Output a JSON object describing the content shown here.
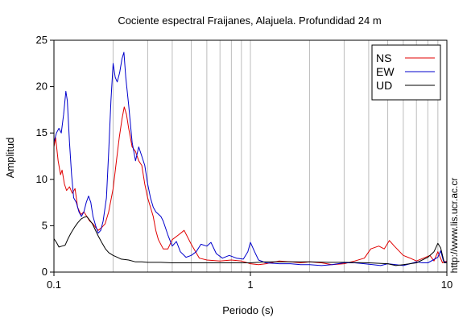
{
  "chart_data": {
    "type": "line",
    "title": "Cociente espectral Fraijanes, Alajuela. Profundidad 24 m",
    "xlabel": "Periodo (s)",
    "ylabel": "Amplitud",
    "xscale": "log",
    "xlim": [
      0.1,
      10
    ],
    "ylim": [
      0,
      25
    ],
    "xticks": [
      {
        "v": 0.1,
        "label": "0.1"
      },
      {
        "v": 1,
        "label": "1"
      },
      {
        "v": 10,
        "label": "10"
      }
    ],
    "yticks": [
      {
        "v": 0,
        "label": "0"
      },
      {
        "v": 5,
        "label": "5"
      },
      {
        "v": 10,
        "label": "10"
      },
      {
        "v": 15,
        "label": "15"
      },
      {
        "v": 20,
        "label": "20"
      },
      {
        "v": 25,
        "label": "25"
      }
    ],
    "grid": "vertical-log",
    "legend_position": "top-right",
    "side_text": "http://www.lis.ucr.ac.cr",
    "series": [
      {
        "name": "NS",
        "color": "#e00000",
        "points": [
          [
            0.1,
            13.5
          ],
          [
            0.102,
            14.5
          ],
          [
            0.105,
            12
          ],
          [
            0.108,
            10.5
          ],
          [
            0.11,
            11
          ],
          [
            0.113,
            9.5
          ],
          [
            0.116,
            8.8
          ],
          [
            0.12,
            9.2
          ],
          [
            0.124,
            8.5
          ],
          [
            0.128,
            9
          ],
          [
            0.132,
            7
          ],
          [
            0.137,
            6.2
          ],
          [
            0.142,
            6.5
          ],
          [
            0.147,
            6
          ],
          [
            0.152,
            5.5
          ],
          [
            0.158,
            5.2
          ],
          [
            0.163,
            4.8
          ],
          [
            0.168,
            4.5
          ],
          [
            0.175,
            4.8
          ],
          [
            0.182,
            5.2
          ],
          [
            0.19,
            6.5
          ],
          [
            0.2,
            9
          ],
          [
            0.208,
            12
          ],
          [
            0.215,
            14.5
          ],
          [
            0.222,
            16.5
          ],
          [
            0.228,
            17.8
          ],
          [
            0.234,
            17
          ],
          [
            0.24,
            15.5
          ],
          [
            0.25,
            13.5
          ],
          [
            0.26,
            13
          ],
          [
            0.27,
            12
          ],
          [
            0.28,
            11.5
          ],
          [
            0.29,
            9.5
          ],
          [
            0.3,
            8
          ],
          [
            0.31,
            7
          ],
          [
            0.32,
            6
          ],
          [
            0.33,
            4.5
          ],
          [
            0.34,
            3.5
          ],
          [
            0.36,
            2.5
          ],
          [
            0.38,
            2.5
          ],
          [
            0.4,
            3.5
          ],
          [
            0.43,
            4
          ],
          [
            0.46,
            4.5
          ],
          [
            0.5,
            3
          ],
          [
            0.55,
            1.5
          ],
          [
            0.6,
            1.3
          ],
          [
            0.7,
            1.2
          ],
          [
            0.8,
            1.3
          ],
          [
            0.9,
            1.2
          ],
          [
            1,
            0.9
          ],
          [
            1.1,
            0.8
          ],
          [
            1.2,
            0.9
          ],
          [
            1.4,
            1.2
          ],
          [
            1.6,
            1.1
          ],
          [
            1.8,
            1
          ],
          [
            2,
            1.1
          ],
          [
            2.3,
            1
          ],
          [
            2.6,
            0.8
          ],
          [
            3,
            0.9
          ],
          [
            3.4,
            1.2
          ],
          [
            3.8,
            1.5
          ],
          [
            4.1,
            2.5
          ],
          [
            4.5,
            2.8
          ],
          [
            4.8,
            2.5
          ],
          [
            5.1,
            3.4
          ],
          [
            5.4,
            2.8
          ],
          [
            6,
            1.8
          ],
          [
            6.5,
            1.5
          ],
          [
            7,
            1.2
          ],
          [
            7.6,
            1.5
          ],
          [
            8.2,
            1.8
          ],
          [
            8.6,
            1.2
          ],
          [
            9,
            2.2
          ],
          [
            9.5,
            1
          ],
          [
            10,
            1.2
          ]
        ]
      },
      {
        "name": "EW",
        "color": "#0000cc",
        "points": [
          [
            0.1,
            14
          ],
          [
            0.103,
            15
          ],
          [
            0.106,
            15.5
          ],
          [
            0.109,
            15
          ],
          [
            0.112,
            17
          ],
          [
            0.115,
            19.5
          ],
          [
            0.117,
            18.5
          ],
          [
            0.12,
            14
          ],
          [
            0.123,
            10.5
          ],
          [
            0.126,
            8
          ],
          [
            0.13,
            7.5
          ],
          [
            0.134,
            6.5
          ],
          [
            0.138,
            6
          ],
          [
            0.142,
            6.5
          ],
          [
            0.146,
            7.5
          ],
          [
            0.15,
            8.2
          ],
          [
            0.154,
            7.5
          ],
          [
            0.158,
            6
          ],
          [
            0.163,
            5
          ],
          [
            0.168,
            4.2
          ],
          [
            0.173,
            4.5
          ],
          [
            0.178,
            5.5
          ],
          [
            0.185,
            8
          ],
          [
            0.19,
            13
          ],
          [
            0.195,
            18.5
          ],
          [
            0.2,
            22.5
          ],
          [
            0.205,
            21
          ],
          [
            0.21,
            20.5
          ],
          [
            0.216,
            21.5
          ],
          [
            0.222,
            23
          ],
          [
            0.227,
            23.7
          ],
          [
            0.232,
            21
          ],
          [
            0.24,
            18
          ],
          [
            0.25,
            14
          ],
          [
            0.26,
            12
          ],
          [
            0.27,
            13.5
          ],
          [
            0.28,
            12.5
          ],
          [
            0.29,
            11.5
          ],
          [
            0.3,
            9.5
          ],
          [
            0.31,
            8
          ],
          [
            0.32,
            7
          ],
          [
            0.33,
            6.5
          ],
          [
            0.35,
            6
          ],
          [
            0.36,
            5.5
          ],
          [
            0.38,
            4
          ],
          [
            0.4,
            2.8
          ],
          [
            0.42,
            3.3
          ],
          [
            0.44,
            2.2
          ],
          [
            0.47,
            1.6
          ],
          [
            0.5,
            1.8
          ],
          [
            0.53,
            2.2
          ],
          [
            0.56,
            3
          ],
          [
            0.6,
            2.8
          ],
          [
            0.63,
            3.2
          ],
          [
            0.67,
            2
          ],
          [
            0.72,
            1.5
          ],
          [
            0.78,
            1.8
          ],
          [
            0.85,
            1.5
          ],
          [
            0.92,
            1.4
          ],
          [
            0.97,
            2.2
          ],
          [
            1.0,
            3.2
          ],
          [
            1.05,
            2.2
          ],
          [
            1.1,
            1.3
          ],
          [
            1.2,
            1
          ],
          [
            1.4,
            0.9
          ],
          [
            1.6,
            0.9
          ],
          [
            1.8,
            0.8
          ],
          [
            2,
            0.8
          ],
          [
            2.3,
            0.7
          ],
          [
            2.6,
            0.8
          ],
          [
            3,
            1
          ],
          [
            3.4,
            1
          ],
          [
            3.8,
            0.9
          ],
          [
            4.2,
            0.8
          ],
          [
            4.6,
            0.7
          ],
          [
            5,
            0.9
          ],
          [
            5.5,
            0.8
          ],
          [
            6,
            0.7
          ],
          [
            6.5,
            0.9
          ],
          [
            7,
            1.1
          ],
          [
            7.5,
            1
          ],
          [
            8,
            1
          ],
          [
            8.5,
            1.3
          ],
          [
            9,
            1.6
          ],
          [
            9.3,
            2.3
          ],
          [
            9.6,
            1.2
          ],
          [
            10,
            1
          ]
        ]
      },
      {
        "name": "UD",
        "color": "#000000",
        "points": [
          [
            0.1,
            3.6
          ],
          [
            0.103,
            3.2
          ],
          [
            0.106,
            2.7
          ],
          [
            0.11,
            2.8
          ],
          [
            0.114,
            2.9
          ],
          [
            0.118,
            3.6
          ],
          [
            0.122,
            4.2
          ],
          [
            0.127,
            4.8
          ],
          [
            0.132,
            5.3
          ],
          [
            0.137,
            5.7
          ],
          [
            0.142,
            5.9
          ],
          [
            0.147,
            6
          ],
          [
            0.152,
            5.6
          ],
          [
            0.157,
            5.2
          ],
          [
            0.162,
            4.6
          ],
          [
            0.168,
            3.9
          ],
          [
            0.175,
            3.2
          ],
          [
            0.183,
            2.5
          ],
          [
            0.19,
            2.1
          ],
          [
            0.2,
            1.8
          ],
          [
            0.21,
            1.6
          ],
          [
            0.22,
            1.4
          ],
          [
            0.24,
            1.3
          ],
          [
            0.26,
            1.1
          ],
          [
            0.28,
            1.1
          ],
          [
            0.3,
            1.05
          ],
          [
            0.35,
            1.05
          ],
          [
            0.4,
            1
          ],
          [
            0.5,
            1
          ],
          [
            0.6,
            1
          ],
          [
            0.7,
            1
          ],
          [
            0.8,
            1
          ],
          [
            1,
            1
          ],
          [
            1.2,
            1.1
          ],
          [
            1.5,
            1.1
          ],
          [
            2,
            1.1
          ],
          [
            2.5,
            1.05
          ],
          [
            3,
            1.05
          ],
          [
            4,
            1
          ],
          [
            5,
            0.9
          ],
          [
            5.5,
            0.7
          ],
          [
            6,
            0.8
          ],
          [
            7,
            1
          ],
          [
            8,
            1.6
          ],
          [
            8.6,
            2.2
          ],
          [
            9,
            3.1
          ],
          [
            9.3,
            2.6
          ],
          [
            9.7,
            1
          ],
          [
            10,
            1
          ]
        ]
      }
    ]
  }
}
